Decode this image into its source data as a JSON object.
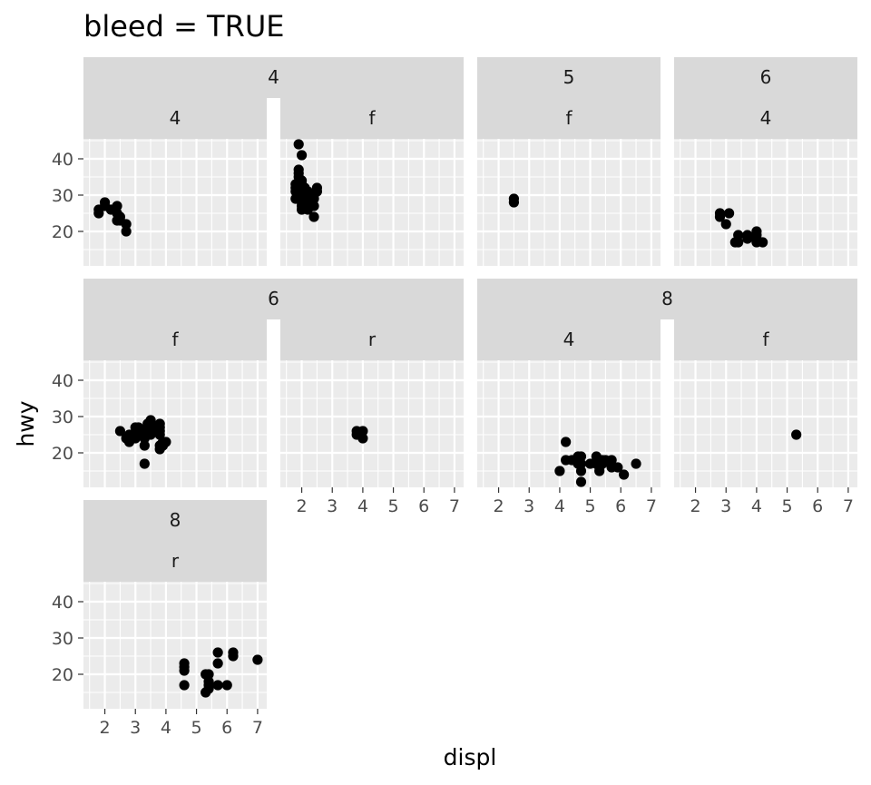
{
  "chart_data": {
    "type": "scatter",
    "title": "bleed = TRUE",
    "xlabel": "displ",
    "ylabel": "hwy",
    "xlim": [
      1.3,
      7.3
    ],
    "ylim": [
      10.5,
      45.5
    ],
    "x_ticks": [
      2,
      3,
      4,
      5,
      6,
      7
    ],
    "y_ticks": [
      20,
      30,
      40
    ],
    "grid": true,
    "colors": {
      "panel_bg": "#EBEBEB",
      "grid": "#FFFFFF",
      "strip_bg": "#D9D9D9",
      "point": "#000000"
    },
    "strip_groups": [
      {
        "label": "4",
        "panels": [
          0,
          1
        ]
      },
      {
        "label": "5",
        "panels": [
          2
        ]
      },
      {
        "label": "6",
        "panels": [
          3
        ]
      },
      {
        "label": "6",
        "panels": [
          4,
          5
        ]
      },
      {
        "label": "8",
        "panels": [
          6,
          7
        ]
      },
      {
        "label": "8",
        "panels": [
          8
        ]
      }
    ],
    "panels": [
      {
        "cyl": "4",
        "drv": "4",
        "points": [
          [
            1.8,
            26
          ],
          [
            1.8,
            25
          ],
          [
            2.0,
            28
          ],
          [
            2.0,
            27
          ],
          [
            2.2,
            26
          ],
          [
            2.4,
            27
          ],
          [
            2.4,
            25
          ],
          [
            2.4,
            23
          ],
          [
            2.5,
            24
          ],
          [
            2.5,
            23
          ],
          [
            2.7,
            22
          ],
          [
            2.7,
            20
          ]
        ]
      },
      {
        "cyl": "4",
        "drv": "f",
        "points": [
          [
            1.8,
            29
          ],
          [
            1.8,
            31
          ],
          [
            1.8,
            33
          ],
          [
            1.8,
            32
          ],
          [
            1.9,
            29
          ],
          [
            1.9,
            30
          ],
          [
            1.9,
            35
          ],
          [
            1.9,
            37
          ],
          [
            1.9,
            36
          ],
          [
            1.9,
            44
          ],
          [
            2.0,
            41
          ],
          [
            2.0,
            31
          ],
          [
            2.0,
            30
          ],
          [
            2.0,
            29
          ],
          [
            2.0,
            28
          ],
          [
            2.0,
            27
          ],
          [
            2.0,
            26
          ],
          [
            2.0,
            33
          ],
          [
            2.0,
            34
          ],
          [
            2.1,
            32
          ],
          [
            2.2,
            31
          ],
          [
            2.2,
            29
          ],
          [
            2.2,
            27
          ],
          [
            2.2,
            26
          ],
          [
            2.4,
            30
          ],
          [
            2.4,
            29
          ],
          [
            2.4,
            27
          ],
          [
            2.4,
            24
          ],
          [
            2.5,
            32
          ],
          [
            2.5,
            31
          ]
        ]
      },
      {
        "cyl": "5",
        "drv": "f",
        "points": [
          [
            2.5,
            29
          ],
          [
            2.5,
            28
          ]
        ]
      },
      {
        "cyl": "6",
        "drv": "4",
        "points": [
          [
            2.8,
            25
          ],
          [
            2.8,
            24
          ],
          [
            3.0,
            22
          ],
          [
            3.1,
            25
          ],
          [
            3.3,
            17
          ],
          [
            3.4,
            17
          ],
          [
            3.4,
            19
          ],
          [
            3.7,
            18
          ],
          [
            3.7,
            19
          ],
          [
            4.0,
            17
          ],
          [
            4.0,
            18
          ],
          [
            4.0,
            19
          ],
          [
            4.0,
            20
          ],
          [
            4.2,
            17
          ]
        ]
      },
      {
        "cyl": "6",
        "drv": "f",
        "points": [
          [
            2.5,
            26
          ],
          [
            2.7,
            24
          ],
          [
            2.8,
            25
          ],
          [
            2.8,
            24
          ],
          [
            2.8,
            23
          ],
          [
            3.0,
            27
          ],
          [
            3.0,
            25
          ],
          [
            3.0,
            24
          ],
          [
            3.1,
            26
          ],
          [
            3.1,
            27
          ],
          [
            3.3,
            26
          ],
          [
            3.3,
            24
          ],
          [
            3.3,
            22
          ],
          [
            3.3,
            17
          ],
          [
            3.4,
            28
          ],
          [
            3.4,
            27
          ],
          [
            3.5,
            29
          ],
          [
            3.5,
            28
          ],
          [
            3.5,
            25
          ],
          [
            3.6,
            26
          ],
          [
            3.8,
            28
          ],
          [
            3.8,
            27
          ],
          [
            3.8,
            26
          ],
          [
            3.8,
            25
          ],
          [
            3.8,
            22
          ],
          [
            3.8,
            21
          ],
          [
            3.9,
            23
          ],
          [
            3.9,
            22
          ],
          [
            4.0,
            23
          ]
        ]
      },
      {
        "cyl": "6",
        "drv": "r",
        "points": [
          [
            3.8,
            26
          ],
          [
            3.8,
            25
          ],
          [
            4.0,
            26
          ],
          [
            4.0,
            24
          ]
        ]
      },
      {
        "cyl": "8",
        "drv": "4",
        "points": [
          [
            4.0,
            15
          ],
          [
            4.2,
            23
          ],
          [
            4.2,
            18
          ],
          [
            4.4,
            18
          ],
          [
            4.6,
            19
          ],
          [
            4.6,
            18
          ],
          [
            4.6,
            17
          ],
          [
            4.7,
            19
          ],
          [
            4.7,
            17
          ],
          [
            4.7,
            15
          ],
          [
            4.7,
            12
          ],
          [
            5.0,
            17
          ],
          [
            5.2,
            19
          ],
          [
            5.2,
            17
          ],
          [
            5.3,
            16
          ],
          [
            5.3,
            15
          ],
          [
            5.4,
            18
          ],
          [
            5.4,
            17
          ],
          [
            5.5,
            18
          ],
          [
            5.7,
            18
          ],
          [
            5.7,
            16
          ],
          [
            5.9,
            16
          ],
          [
            6.1,
            14
          ],
          [
            6.5,
            17
          ]
        ]
      },
      {
        "cyl": "8",
        "drv": "f",
        "points": [
          [
            5.3,
            25
          ]
        ]
      },
      {
        "cyl": "8",
        "drv": "r",
        "points": [
          [
            4.6,
            23
          ],
          [
            4.6,
            22
          ],
          [
            4.6,
            21
          ],
          [
            4.6,
            17
          ],
          [
            5.3,
            20
          ],
          [
            5.3,
            15
          ],
          [
            5.4,
            18
          ],
          [
            5.4,
            17
          ],
          [
            5.4,
            16
          ],
          [
            5.4,
            20
          ],
          [
            5.7,
            26
          ],
          [
            5.7,
            23
          ],
          [
            5.7,
            17
          ],
          [
            6.0,
            17
          ],
          [
            6.2,
            26
          ],
          [
            6.2,
            25
          ],
          [
            7.0,
            24
          ]
        ]
      }
    ]
  }
}
